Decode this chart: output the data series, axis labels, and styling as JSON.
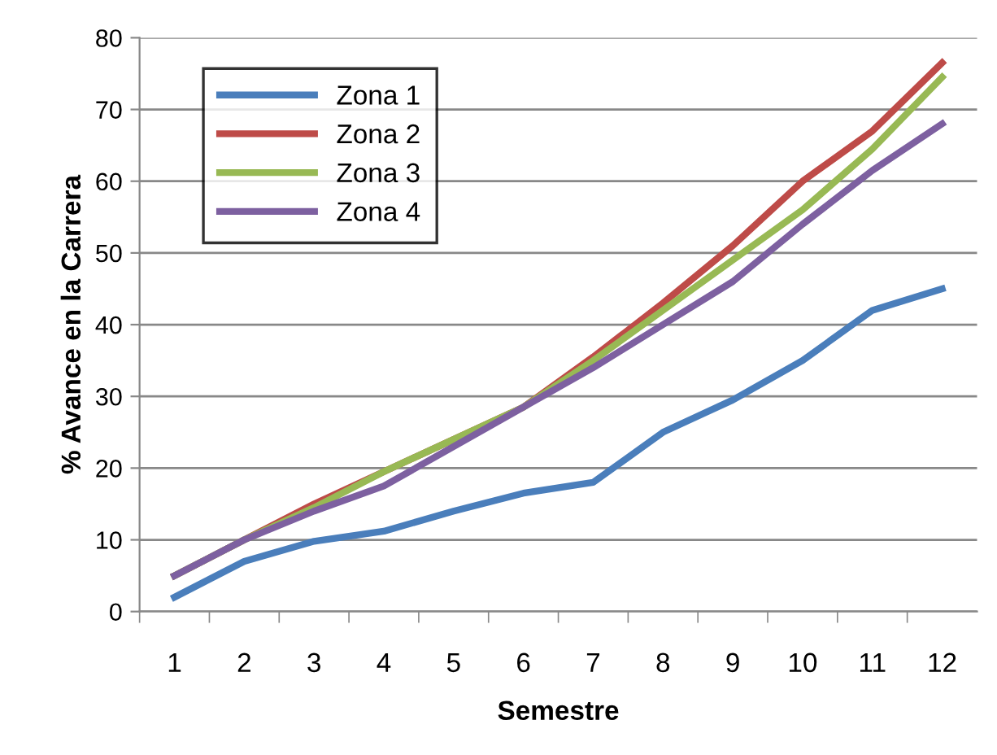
{
  "chart_data": {
    "type": "line",
    "xlabel": "Semestre",
    "ylabel": "% Avance en la Carrera",
    "categories": [
      "1",
      "2",
      "3",
      "4",
      "5",
      "6",
      "7",
      "8",
      "9",
      "10",
      "11",
      "12"
    ],
    "series": [
      {
        "name": "Zona 1",
        "color": "#4a7ebb",
        "values": [
          2,
          7,
          9.8,
          11.2,
          14,
          16.5,
          18,
          25,
          29.5,
          35,
          42,
          45
        ]
      },
      {
        "name": "Zona 2",
        "color": "#be4b48",
        "values": [
          5,
          10,
          15,
          19.5,
          24,
          28.5,
          35.5,
          43,
          51,
          60,
          67,
          76.5
        ]
      },
      {
        "name": "Zona 3",
        "color": "#98b954",
        "values": [
          5,
          10,
          14.5,
          19.5,
          24,
          28.5,
          35,
          42,
          49,
          56,
          64.5,
          74.5
        ]
      },
      {
        "name": "Zona 4",
        "color": "#7d60a0",
        "values": [
          5,
          10,
          14,
          17.5,
          23,
          28.5,
          34,
          40,
          46,
          54,
          61.5,
          68
        ]
      }
    ],
    "ylim": [
      0,
      80
    ],
    "yticks": [
      0,
      10,
      20,
      30,
      40,
      50,
      60,
      70,
      80
    ],
    "grid": "y",
    "legend": "top left",
    "marker": "none",
    "line_style": "solid"
  }
}
